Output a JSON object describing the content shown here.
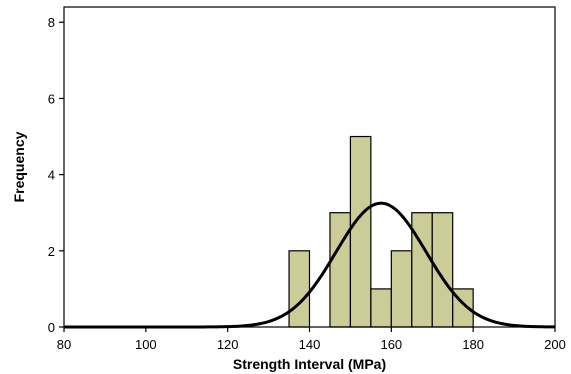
{
  "chart_data": {
    "type": "bar",
    "title": "",
    "xlabel": "Strength Interval (MPa)",
    "ylabel": "Frequency",
    "xlim": [
      80,
      200
    ],
    "ylim": [
      0,
      8.4
    ],
    "xticks": [
      80,
      100,
      120,
      140,
      160,
      180,
      200
    ],
    "yticks": [
      0,
      2,
      4,
      6,
      8
    ],
    "grid": false,
    "legend": "none",
    "bin_width": 5,
    "bins": [
      {
        "start": 135,
        "end": 140,
        "value": 2
      },
      {
        "start": 145,
        "end": 150,
        "value": 3
      },
      {
        "start": 150,
        "end": 155,
        "value": 5
      },
      {
        "start": 155,
        "end": 160,
        "value": 1
      },
      {
        "start": 160,
        "end": 165,
        "value": 2
      },
      {
        "start": 165,
        "end": 170,
        "value": 3
      },
      {
        "start": 170,
        "end": 175,
        "value": 3
      },
      {
        "start": 175,
        "end": 180,
        "value": 1
      }
    ],
    "normal_curve": {
      "mean": 157.5,
      "sd": 11.0,
      "peak": 3.25
    },
    "colors": {
      "bar_fill": "#cccc99",
      "bar_stroke": "#000000",
      "curve": "#000000"
    }
  }
}
